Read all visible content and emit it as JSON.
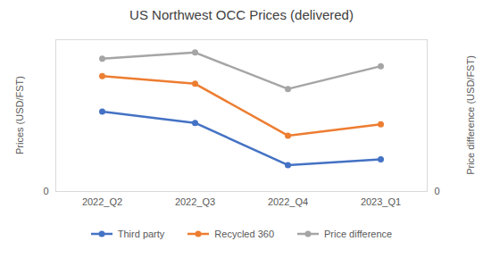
{
  "chart_data": {
    "type": "line",
    "title": "US Northwest OCC Prices (delivered)",
    "y_label": "Prices (USD/FST)",
    "y2_label": "Price difference (USD/FST)",
    "categories": [
      "2022_Q2",
      "2022_Q3",
      "2022_Q4",
      "2023_Q1"
    ],
    "series": [
      {
        "name": "Third party",
        "color": "#4472c4",
        "marker": "circle",
        "values": [
          2.63,
          2.26,
          0.87,
          1.06
        ]
      },
      {
        "name": "Recycled 360",
        "color": "#ed7d31",
        "marker": "circle",
        "values": [
          3.8,
          3.55,
          1.84,
          2.21
        ]
      },
      {
        "name": "Price difference",
        "color": "#a5a5a5",
        "marker": "circle",
        "axis": "y2",
        "values": [
          6.13,
          6.41,
          4.73,
          5.78
        ]
      }
    ],
    "ylim": [
      0,
      5
    ],
    "yticks": [
      0
    ],
    "y2lim": [
      0,
      7
    ],
    "y2ticks": [
      0
    ],
    "grid": true,
    "legend": "bottom"
  }
}
